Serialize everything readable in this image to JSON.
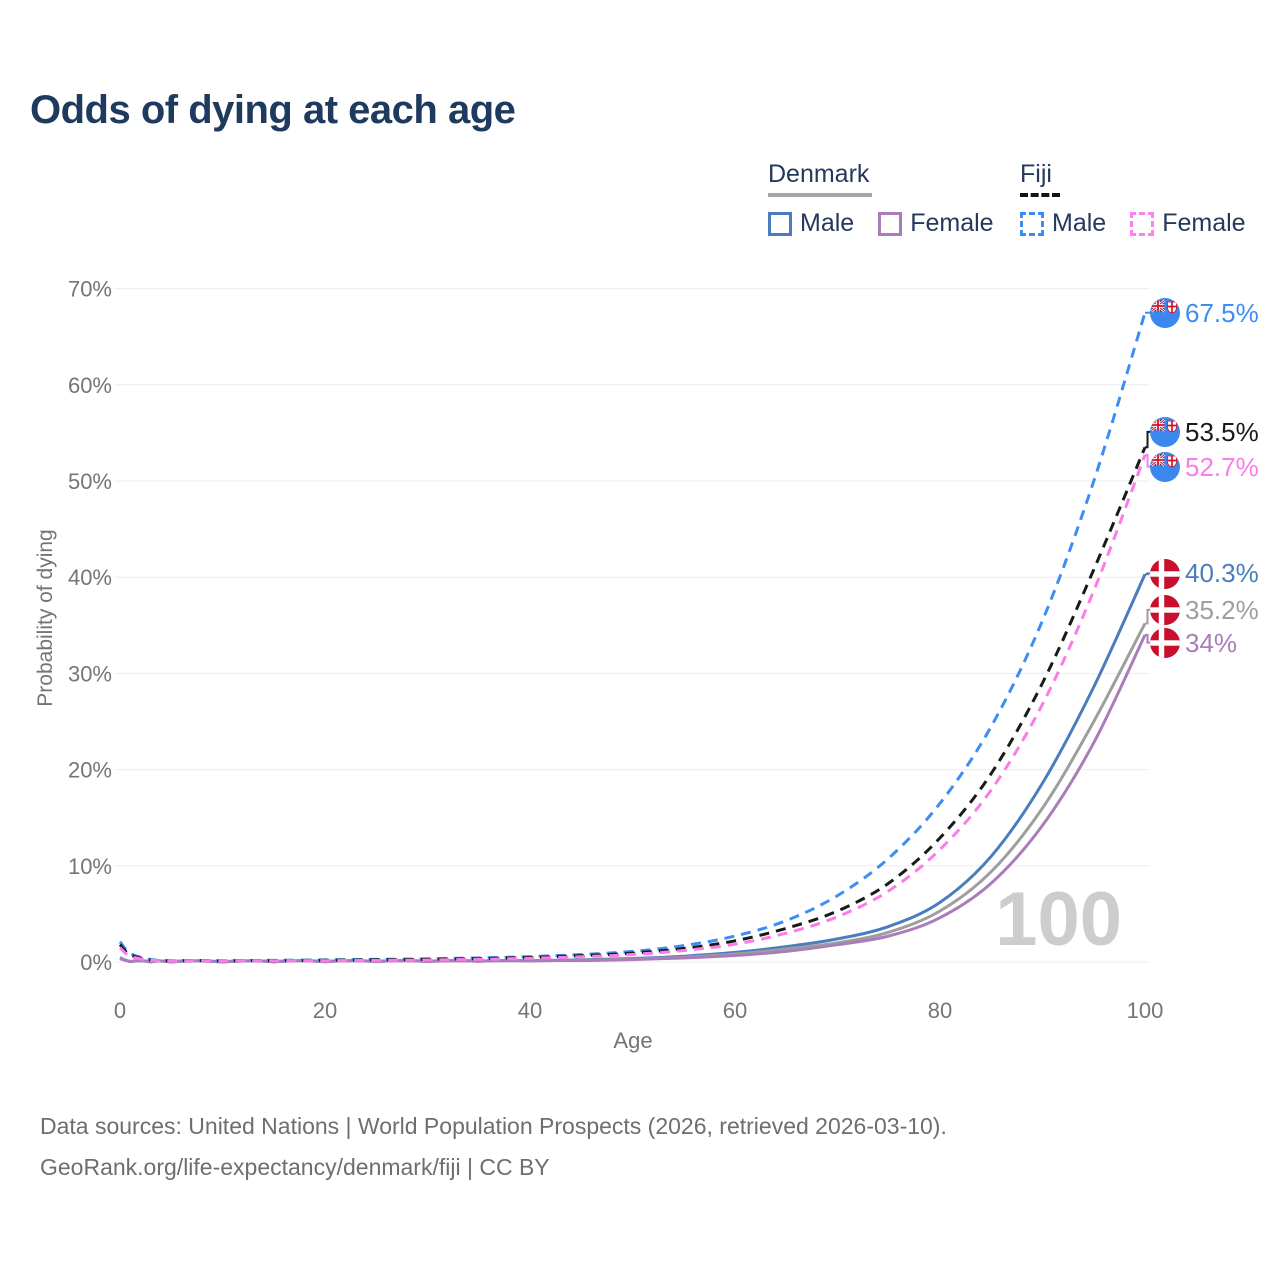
{
  "title": "Odds of dying at each age",
  "legend": {
    "groups": [
      {
        "label": "Denmark",
        "line_style": "solid",
        "line_color": "#a6a6a6",
        "items": [
          {
            "label": "Male",
            "color": "#4a7dbe",
            "dashed": false
          },
          {
            "label": "Female",
            "color": "#ab7cba",
            "dashed": false
          }
        ]
      },
      {
        "label": "Fiji",
        "line_style": "dashed",
        "line_color": "#141414",
        "items": [
          {
            "label": "Male",
            "color": "#3d8df5",
            "dashed": true
          },
          {
            "label": "Female",
            "color": "#fc83ea",
            "dashed": true
          }
        ]
      }
    ]
  },
  "chart_data": {
    "type": "line",
    "title": "Odds of dying at each age",
    "xlabel": "Age",
    "ylabel": "Probability of dying",
    "xlim": [
      0,
      100
    ],
    "ylim": [
      0,
      70
    ],
    "xticks": [
      0,
      20,
      40,
      60,
      80,
      100
    ],
    "ytick_labels": [
      "0%",
      "10%",
      "20%",
      "30%",
      "40%",
      "50%",
      "60%",
      "70%"
    ],
    "grid": "horizontal",
    "legend_position": "top-right",
    "watermark": "100",
    "x": [
      0,
      1,
      3,
      5,
      10,
      15,
      20,
      25,
      30,
      35,
      40,
      45,
      50,
      55,
      60,
      65,
      70,
      75,
      80,
      85,
      90,
      95,
      100
    ],
    "series": [
      {
        "name": "Denmark Male",
        "country": "Denmark",
        "sex": "Male",
        "color": "#4a7dbe",
        "dashed": false,
        "flag": "denmark",
        "end_label": "40.3%",
        "end_value": 40.3,
        "label_at": 40.4,
        "values": [
          0.45,
          0.05,
          0.02,
          0.015,
          0.015,
          0.03,
          0.06,
          0.07,
          0.08,
          0.1,
          0.14,
          0.22,
          0.36,
          0.6,
          1.0,
          1.6,
          2.4,
          3.7,
          6.2,
          11.0,
          18.6,
          28.6,
          40.3
        ]
      },
      {
        "name": "Denmark Both sexes",
        "country": "Denmark",
        "sex": "Both",
        "color": "#9e9e9e",
        "dashed": false,
        "flag": "denmark",
        "end_label": "35.2%",
        "end_value": 35.2,
        "label_at": 36.6,
        "values": [
          0.4,
          0.04,
          0.02,
          0.012,
          0.012,
          0.025,
          0.045,
          0.055,
          0.065,
          0.085,
          0.12,
          0.18,
          0.3,
          0.5,
          0.83,
          1.35,
          2.0,
          3.1,
          5.3,
          9.4,
          16.0,
          25.0,
          35.2
        ]
      },
      {
        "name": "Denmark Female",
        "country": "Denmark",
        "sex": "Female",
        "color": "#ab7cba",
        "dashed": false,
        "flag": "denmark",
        "end_label": "34%",
        "end_value": 34,
        "label_at": 33.2,
        "values": [
          0.35,
          0.035,
          0.015,
          0.01,
          0.01,
          0.02,
          0.03,
          0.04,
          0.05,
          0.07,
          0.1,
          0.15,
          0.25,
          0.42,
          0.68,
          1.1,
          1.8,
          2.7,
          4.6,
          8.2,
          14.2,
          22.8,
          34.0
        ]
      },
      {
        "name": "Fiji Male",
        "country": "Fiji",
        "sex": "Male",
        "color": "#3d8df5",
        "dashed": true,
        "flag": "fiji",
        "end_label": "67.5%",
        "end_value": 67.5,
        "label_at": 67.5,
        "values": [
          2.1,
          0.9,
          0.25,
          0.12,
          0.12,
          0.17,
          0.22,
          0.27,
          0.33,
          0.42,
          0.56,
          0.78,
          1.1,
          1.7,
          2.7,
          4.3,
          6.9,
          10.8,
          16.5,
          24.5,
          35.5,
          50.0,
          67.5
        ]
      },
      {
        "name": "Fiji Both sexes",
        "country": "Fiji",
        "sex": "Both",
        "color": "#1a1a1a",
        "dashed": true,
        "flag": "fiji",
        "end_label": "53.5%",
        "end_value": 53.5,
        "label_at": 55.1,
        "values": [
          1.8,
          0.75,
          0.2,
          0.1,
          0.1,
          0.14,
          0.18,
          0.22,
          0.27,
          0.35,
          0.47,
          0.65,
          0.92,
          1.4,
          2.2,
          3.5,
          5.3,
          8.2,
          12.9,
          19.6,
          29.0,
          40.8,
          53.5
        ]
      },
      {
        "name": "Fiji Female",
        "country": "Fiji",
        "sex": "Female",
        "color": "#fb7ce8",
        "dashed": true,
        "flag": "fiji",
        "end_label": "52.7%",
        "end_value": 52.7,
        "label_at": 51.5,
        "values": [
          1.5,
          0.6,
          0.17,
          0.09,
          0.09,
          0.11,
          0.13,
          0.16,
          0.21,
          0.28,
          0.38,
          0.54,
          0.78,
          1.2,
          1.85,
          3.0,
          4.7,
          7.4,
          11.7,
          17.9,
          26.8,
          38.6,
          52.7
        ]
      }
    ],
    "flag_colors": {
      "denmark_red": "#c8102e",
      "fiji_blue": "#3b87ee",
      "union_jack_navy": "#2b3f90",
      "union_jack_red": "#cf142b"
    }
  },
  "footer": {
    "line1": "Data sources: United Nations | World Population Prospects (2026, retrieved 2026-03-10).",
    "line2": "GeoRank.org/life-expectancy/denmark/fiji | CC BY"
  }
}
